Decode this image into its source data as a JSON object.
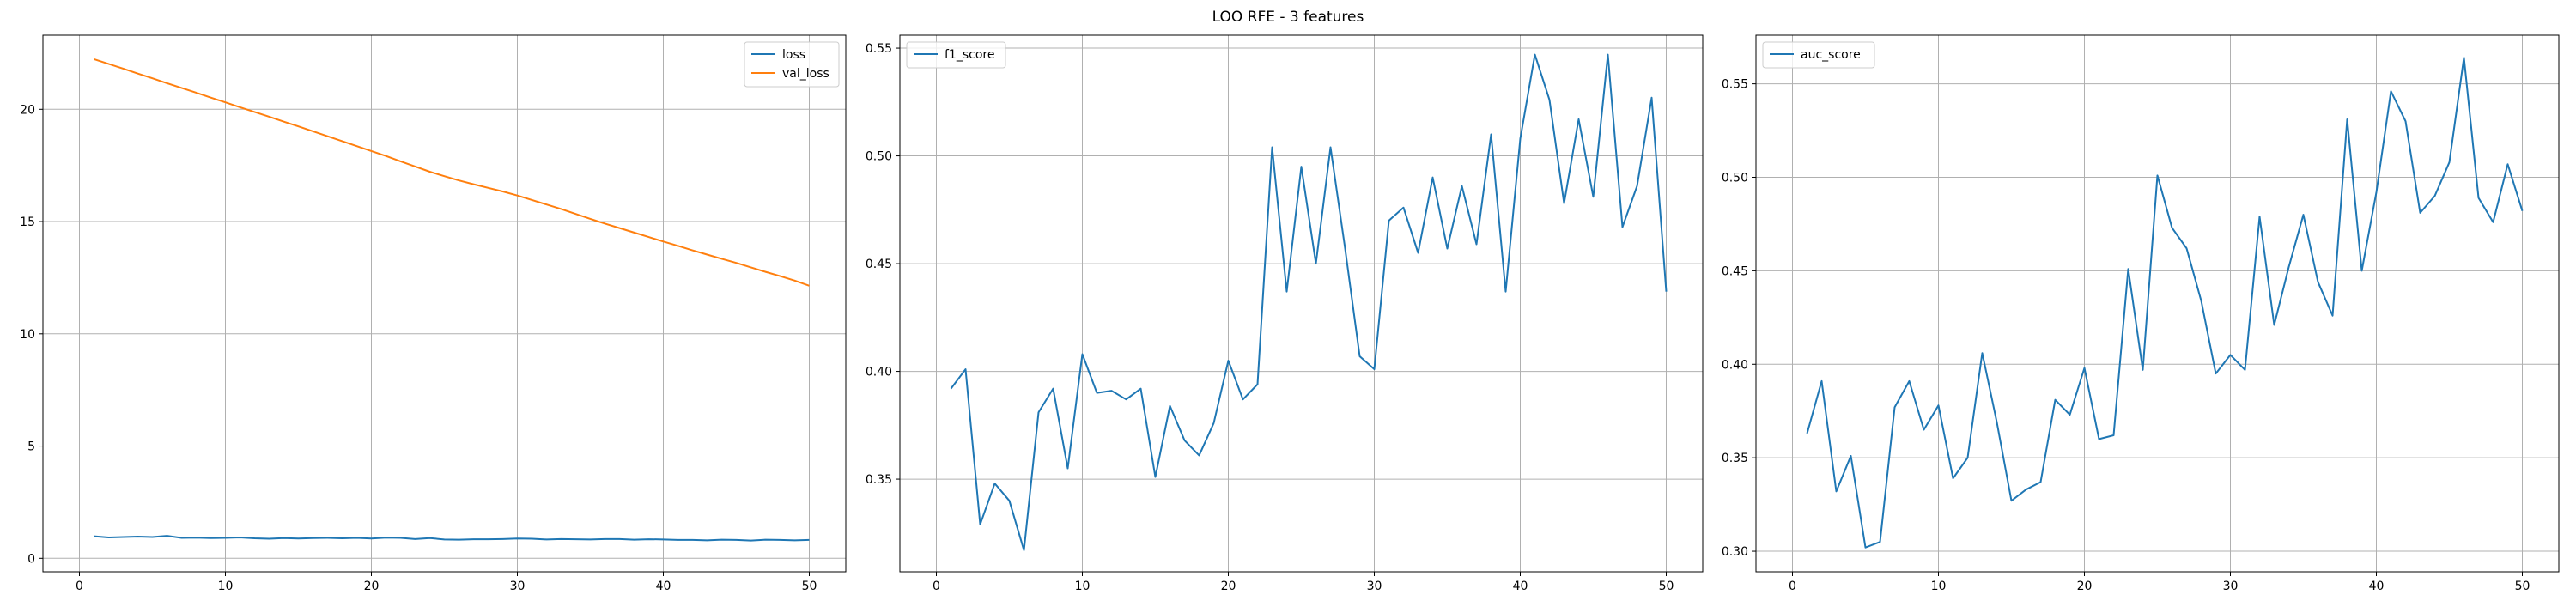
{
  "figure": {
    "title": "LOO RFE - 3 features"
  },
  "chart_data": [
    {
      "type": "line",
      "title": "",
      "xlabel": "",
      "ylabel": "",
      "xlim": [
        -2.5,
        52.5
      ],
      "ylim": [
        -0.6,
        23.3
      ],
      "xticks": [
        0,
        10,
        20,
        30,
        40,
        50
      ],
      "yticks": [
        0,
        5,
        10,
        15,
        20
      ],
      "grid": true,
      "legend": "top-right",
      "x": [
        1,
        2,
        3,
        4,
        5,
        6,
        7,
        8,
        9,
        10,
        11,
        12,
        13,
        14,
        15,
        16,
        17,
        18,
        19,
        20,
        21,
        22,
        23,
        24,
        25,
        26,
        27,
        28,
        29,
        30,
        31,
        32,
        33,
        34,
        35,
        36,
        37,
        38,
        39,
        40,
        41,
        42,
        43,
        44,
        45,
        46,
        47,
        48,
        49,
        50
      ],
      "series": [
        {
          "name": "loss",
          "color": "#1f77b4",
          "values": [
            0.98,
            0.93,
            0.95,
            0.97,
            0.95,
            1.0,
            0.91,
            0.92,
            0.9,
            0.91,
            0.93,
            0.89,
            0.87,
            0.9,
            0.88,
            0.9,
            0.91,
            0.89,
            0.91,
            0.88,
            0.92,
            0.91,
            0.86,
            0.9,
            0.84,
            0.83,
            0.85,
            0.85,
            0.86,
            0.88,
            0.87,
            0.84,
            0.86,
            0.85,
            0.84,
            0.86,
            0.86,
            0.83,
            0.85,
            0.84,
            0.82,
            0.82,
            0.8,
            0.83,
            0.82,
            0.79,
            0.83,
            0.82,
            0.8,
            0.82
          ]
        },
        {
          "name": "val_loss",
          "color": "#ff7f0e",
          "values": [
            22.23,
            22.02,
            21.81,
            21.59,
            21.38,
            21.16,
            20.95,
            20.74,
            20.52,
            20.31,
            20.09,
            19.88,
            19.67,
            19.45,
            19.24,
            19.02,
            18.8,
            18.58,
            18.36,
            18.14,
            17.92,
            17.68,
            17.45,
            17.22,
            17.02,
            16.83,
            16.66,
            16.5,
            16.34,
            16.16,
            15.96,
            15.76,
            15.56,
            15.34,
            15.12,
            14.91,
            14.71,
            14.51,
            14.31,
            14.11,
            13.92,
            13.72,
            13.53,
            13.34,
            13.16,
            12.96,
            12.76,
            12.57,
            12.37,
            12.14
          ]
        }
      ]
    },
    {
      "type": "line",
      "title": "",
      "xlabel": "",
      "ylabel": "",
      "xlim": [
        -2.5,
        52.5
      ],
      "ylim": [
        0.307,
        0.556
      ],
      "xticks": [
        0,
        10,
        20,
        30,
        40,
        50
      ],
      "yticks": [
        0.35,
        0.4,
        0.45,
        0.5,
        0.55
      ],
      "yticklabels": [
        "0.35",
        "0.40",
        "0.45",
        "0.50",
        "0.55"
      ],
      "grid": true,
      "legend": "top-left",
      "x": [
        1,
        2,
        3,
        4,
        5,
        6,
        7,
        8,
        9,
        10,
        11,
        12,
        13,
        14,
        15,
        16,
        17,
        18,
        19,
        20,
        21,
        22,
        23,
        24,
        25,
        26,
        27,
        28,
        29,
        30,
        31,
        32,
        33,
        34,
        35,
        36,
        37,
        38,
        39,
        40,
        41,
        42,
        43,
        44,
        45,
        46,
        47,
        48,
        49,
        50
      ],
      "series": [
        {
          "name": "f1_score",
          "color": "#1f77b4",
          "values": [
            0.392,
            0.401,
            0.329,
            0.348,
            0.34,
            0.317,
            0.381,
            0.392,
            0.355,
            0.408,
            0.39,
            0.391,
            0.387,
            0.392,
            0.351,
            0.384,
            0.368,
            0.361,
            0.376,
            0.405,
            0.387,
            0.394,
            0.504,
            0.437,
            0.495,
            0.45,
            0.504,
            0.457,
            0.407,
            0.401,
            0.47,
            0.476,
            0.455,
            0.49,
            0.457,
            0.486,
            0.459,
            0.51,
            0.437,
            0.508,
            0.547,
            0.526,
            0.478,
            0.517,
            0.481,
            0.547,
            0.467,
            0.486,
            0.527,
            0.437
          ]
        }
      ]
    },
    {
      "type": "line",
      "title": "",
      "xlabel": "",
      "ylabel": "",
      "xlim": [
        -2.5,
        52.5
      ],
      "ylim": [
        0.289,
        0.576
      ],
      "xticks": [
        0,
        10,
        20,
        30,
        40,
        50
      ],
      "yticks": [
        0.3,
        0.35,
        0.4,
        0.45,
        0.5,
        0.55
      ],
      "yticklabels": [
        "0.30",
        "0.35",
        "0.40",
        "0.45",
        "0.50",
        "0.55"
      ],
      "grid": true,
      "legend": "top-left",
      "x": [
        1,
        2,
        3,
        4,
        5,
        6,
        7,
        8,
        9,
        10,
        11,
        12,
        13,
        14,
        15,
        16,
        17,
        18,
        19,
        20,
        21,
        22,
        23,
        24,
        25,
        26,
        27,
        28,
        29,
        30,
        31,
        32,
        33,
        34,
        35,
        36,
        37,
        38,
        39,
        40,
        41,
        42,
        43,
        44,
        45,
        46,
        47,
        48,
        49,
        50
      ],
      "series": [
        {
          "name": "auc_score",
          "color": "#1f77b4",
          "values": [
            0.363,
            0.391,
            0.332,
            0.351,
            0.302,
            0.305,
            0.377,
            0.391,
            0.365,
            0.378,
            0.339,
            0.35,
            0.406,
            0.369,
            0.327,
            0.333,
            0.337,
            0.381,
            0.373,
            0.398,
            0.36,
            0.362,
            0.451,
            0.397,
            0.501,
            0.473,
            0.462,
            0.434,
            0.395,
            0.405,
            0.397,
            0.479,
            0.421,
            0.452,
            0.48,
            0.444,
            0.426,
            0.531,
            0.45,
            0.492,
            0.546,
            0.53,
            0.481,
            0.49,
            0.508,
            0.564,
            0.489,
            0.476,
            0.507,
            0.482
          ]
        }
      ]
    }
  ]
}
